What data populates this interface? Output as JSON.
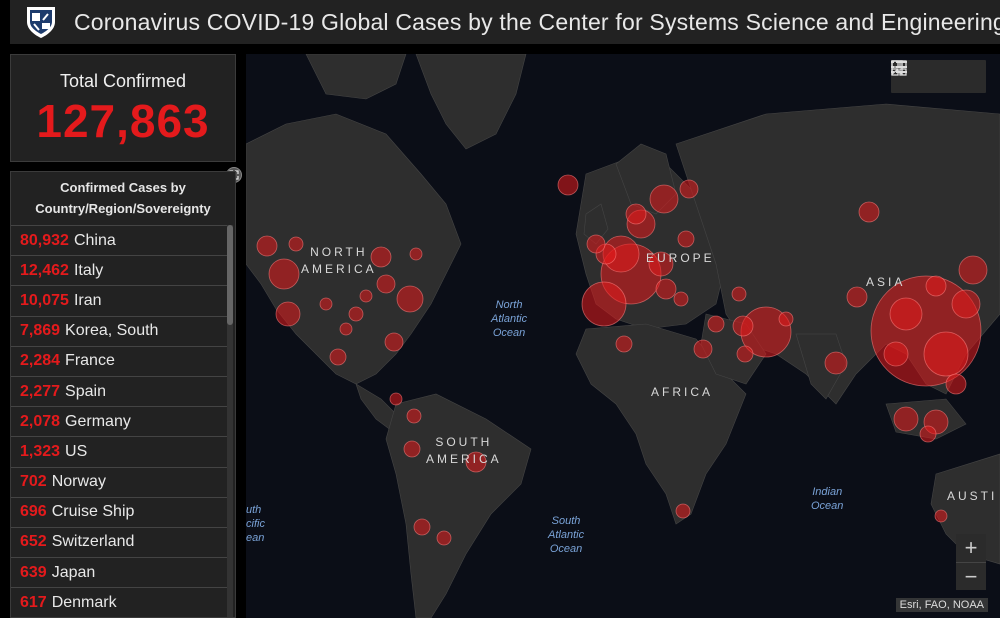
{
  "header": {
    "title": "Coronavirus COVID-19 Global Cases by the Center for Systems Science and Engineering"
  },
  "total": {
    "label": "Total Confirmed",
    "value": "127,863"
  },
  "list": {
    "header_line1": "Confirmed Cases by",
    "header_line2": "Country/Region/Sovereignty",
    "rows": [
      {
        "count": "80,932",
        "name": "China"
      },
      {
        "count": "12,462",
        "name": "Italy"
      },
      {
        "count": "10,075",
        "name": "Iran"
      },
      {
        "count": "7,869",
        "name": "Korea, South"
      },
      {
        "count": "2,284",
        "name": "France"
      },
      {
        "count": "2,277",
        "name": "Spain"
      },
      {
        "count": "2,078",
        "name": "Germany"
      },
      {
        "count": "1,323",
        "name": "US"
      },
      {
        "count": "702",
        "name": "Norway"
      },
      {
        "count": "696",
        "name": "Cruise Ship"
      },
      {
        "count": "652",
        "name": "Switzerland"
      },
      {
        "count": "639",
        "name": "Japan"
      },
      {
        "count": "617",
        "name": "Denmark"
      }
    ]
  },
  "map": {
    "continents": {
      "north_america_1": "NORTH",
      "north_america_2": "AMERICA",
      "europe": "EUROPE",
      "asia": "ASIA",
      "africa": "AFRICA",
      "south_america_1": "SOUTH",
      "south_america_2": "AMERICA",
      "australia": "AUSTI"
    },
    "oceans": {
      "north_atlantic_1": "North",
      "north_atlantic_2": "Atlantic",
      "north_atlantic_3": "Ocean",
      "south_atlantic_1": "South",
      "south_atlantic_2": "Atlantic",
      "south_atlantic_3": "Ocean",
      "indian_1": "Indian",
      "indian_2": "Ocean",
      "south_pacific_1": "uth",
      "south_pacific_2": "cific",
      "south_pacific_3": "ean"
    },
    "attribution": "Esri, FAO, NOAA",
    "zoom_in": "+",
    "zoom_out": "−"
  },
  "colors": {
    "accent": "#e41a1c",
    "panel": "#222222",
    "map_bg": "#0b0e17",
    "land": "#2e2e2e"
  },
  "icons": {
    "bookmark": "bookmark-icon",
    "legend": "legend-list-icon",
    "basemap": "basemap-gallery-icon",
    "expand": "expand-icon",
    "logo": "shield-logo-icon"
  }
}
